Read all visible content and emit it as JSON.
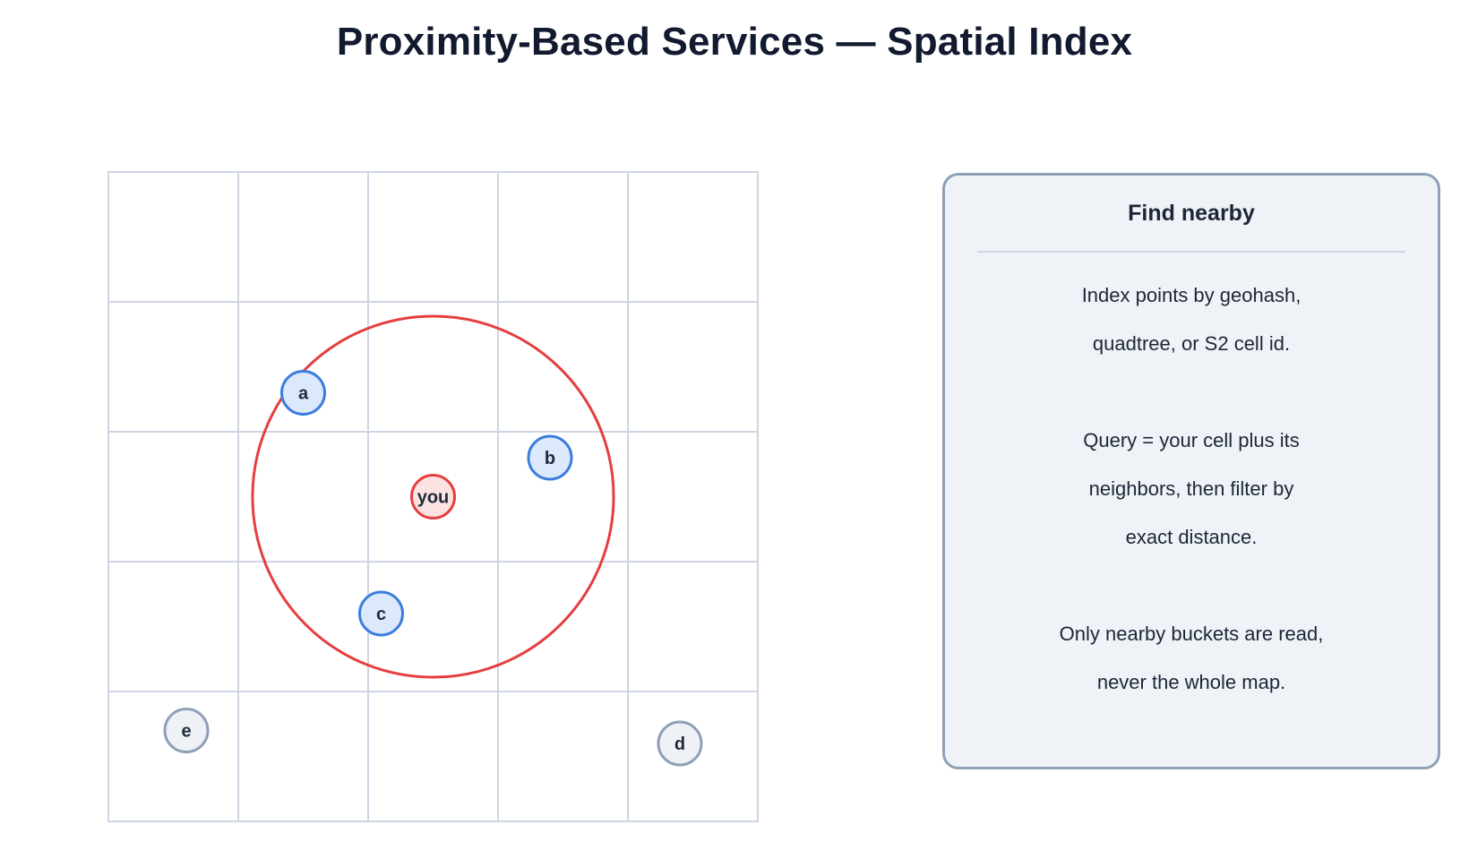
{
  "title": "Proximity-Based Services — Spatial Index",
  "grid": {
    "rows": 5,
    "cols": 5
  },
  "colors": {
    "query": "#e53e3e",
    "query_fill": "#fde2e2",
    "in_range_stroke": "#3b7ddd",
    "in_range_fill": "#dce8fb",
    "out_range_stroke": "#8fa0b6",
    "out_range_fill": "#eef1f6",
    "grid": "#cdd6e2"
  },
  "query_point": {
    "label": "you",
    "col": 2.5,
    "row": 2.5
  },
  "search_radius_cells": 1.39,
  "points": [
    {
      "label": "a",
      "col": 1.5,
      "row": 1.7,
      "in_range": true
    },
    {
      "label": "b",
      "col": 3.4,
      "row": 2.2,
      "in_range": true
    },
    {
      "label": "c",
      "col": 2.1,
      "row": 3.4,
      "in_range": true
    },
    {
      "label": "d",
      "col": 4.4,
      "row": 4.4,
      "in_range": false
    },
    {
      "label": "e",
      "col": 0.6,
      "row": 4.3,
      "in_range": false
    }
  ],
  "panel": {
    "title": "Find nearby",
    "lines": [
      "Index points by geohash,",
      "quadtree, or S2 cell id.",
      "",
      "Query = your cell plus its",
      "neighbors, then filter by",
      "exact distance.",
      "",
      "Only nearby buckets are read,",
      "never the whole map."
    ]
  }
}
